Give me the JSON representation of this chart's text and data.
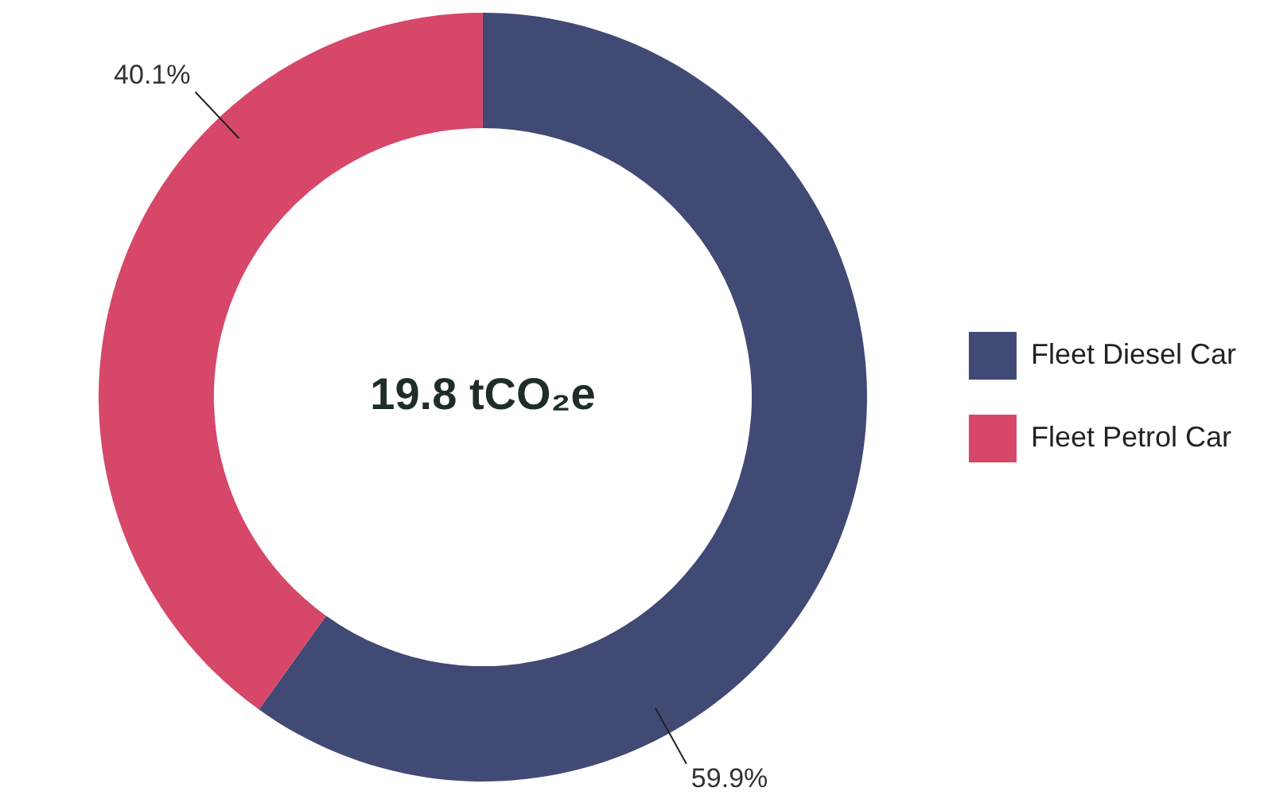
{
  "chart_data": {
    "type": "donut",
    "categories": [
      "Fleet Diesel Car",
      "Fleet Petrol Car"
    ],
    "values": [
      59.9,
      40.1
    ],
    "colors": [
      "#414a75",
      "#d6476a"
    ],
    "value_labels": [
      "59.9%",
      "40.1%"
    ],
    "annotations": [
      "19.8 tCO₂e"
    ],
    "legend": "right"
  }
}
